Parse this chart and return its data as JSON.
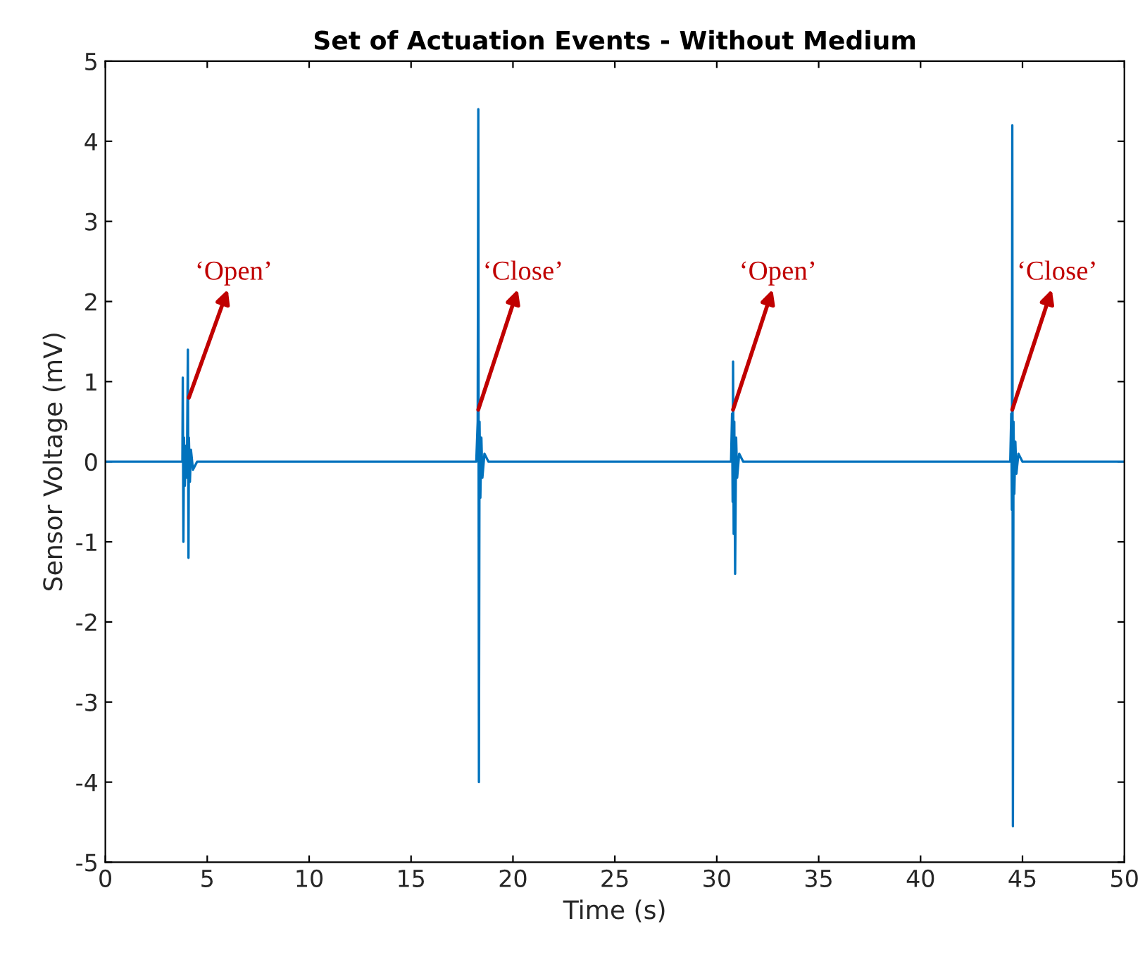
{
  "chart_data": {
    "type": "line",
    "title": "Set of Actuation Events - Without Medium",
    "xlabel": "Time (s)",
    "ylabel": "Sensor Voltage (mV)",
    "series": [
      {
        "color": "#0072bd",
        "x": [
          0,
          3.7,
          3.78,
          3.8,
          3.83,
          3.86,
          3.9,
          3.95,
          4.0,
          4.05,
          4.08,
          4.1,
          4.15,
          4.2,
          4.3,
          4.5,
          18.2,
          18.27,
          18.3,
          18.33,
          18.36,
          18.4,
          18.45,
          18.5,
          18.6,
          18.8,
          30.7,
          30.75,
          30.78,
          30.8,
          30.83,
          30.86,
          30.9,
          30.95,
          31.0,
          31.1,
          31.3,
          44.4,
          44.45,
          44.48,
          44.5,
          44.53,
          44.56,
          44.6,
          44.65,
          44.7,
          44.8,
          45.0,
          50
        ],
        "values": [
          0,
          0,
          0,
          1.05,
          -1.0,
          0.3,
          -0.3,
          0.2,
          -0.2,
          1.4,
          -1.2,
          0.3,
          -0.25,
          0.15,
          -0.1,
          0,
          0,
          0.5,
          4.4,
          -4.0,
          0.5,
          -0.45,
          0.3,
          -0.2,
          0.1,
          0,
          0,
          0.6,
          -0.5,
          1.25,
          -0.9,
          0.5,
          -1.4,
          0.3,
          -0.2,
          0.1,
          0,
          0,
          0.6,
          -0.6,
          4.2,
          -4.55,
          0.5,
          -0.4,
          0.25,
          -0.15,
          0.1,
          0,
          0
        ]
      }
    ],
    "annotations": [
      {
        "text": "‘Open’",
        "x": 4.1,
        "y": 0.8
      },
      {
        "text": "‘Close’",
        "x": 18.3,
        "y": 0.65
      },
      {
        "text": "‘Open’",
        "x": 30.8,
        "y": 0.65
      },
      {
        "text": "‘Close’",
        "x": 44.5,
        "y": 0.65
      }
    ],
    "xlim": [
      0,
      50
    ],
    "ylim": [
      -5,
      5
    ],
    "xticks": [
      0,
      5,
      10,
      15,
      20,
      25,
      30,
      35,
      40,
      45,
      50
    ],
    "yticks": [
      -5,
      -4,
      -3,
      -2,
      -1,
      0,
      1,
      2,
      3,
      4,
      5
    ],
    "grid": false
  }
}
